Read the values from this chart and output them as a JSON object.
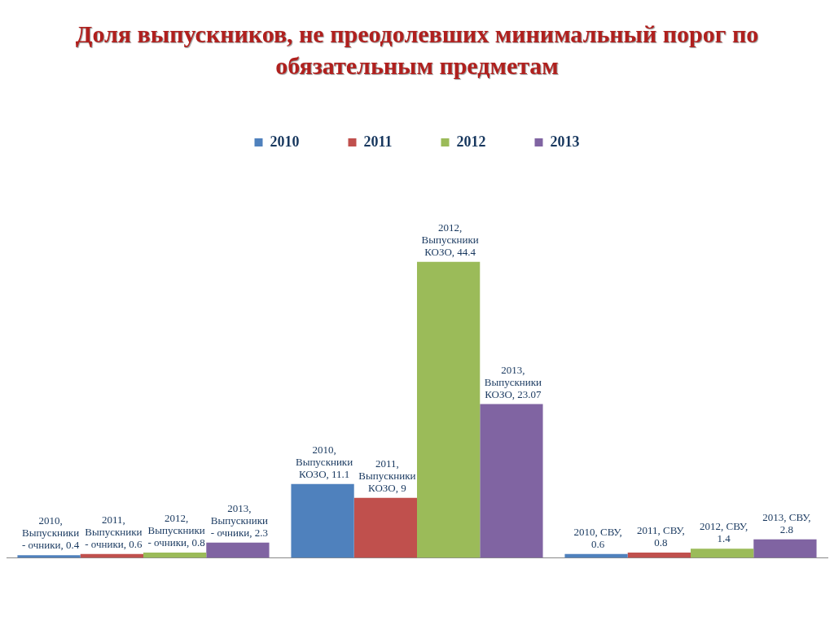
{
  "chart_data": {
    "type": "bar",
    "title": "Доля выпускников, не преодолевших минимальный порог по обязательным предметам",
    "categories": [
      null,
      null,
      null
    ],
    "grid": false,
    "legend": "top",
    "series": [
      {
        "name": "2010",
        "color": "#4f81bd",
        "values": [
          0.4,
          11.1,
          0.6
        ],
        "value_labels": [
          "2010, Выпускники - очники, 0.4",
          "2010, Выпускники КОЗО, 11.1",
          "2010, СВУ, 0.6"
        ]
      },
      {
        "name": "2011",
        "color": "#c0504d",
        "values": [
          0.6,
          9,
          0.8
        ],
        "value_labels": [
          "2011, Выпускники - очники, 0.6",
          "2011, Выпускники КОЗО, 9",
          "2011, СВУ, 0.8"
        ]
      },
      {
        "name": "2012",
        "color": "#9bbb59",
        "values": [
          0.8,
          44.4,
          1.4
        ],
        "value_labels": [
          "2012, Выпускники - очники, 0.8",
          "2012, Выпускники КОЗО, 44.4",
          "2012, СВУ, 1.4"
        ]
      },
      {
        "name": "2013",
        "color": "#8064a2",
        "values": [
          2.3,
          23.07,
          2.8
        ],
        "value_labels": [
          "2013, Выпускники - очники, 2.3",
          "2013, Выпускники КОЗО, 23.07",
          "2013, СВУ, 2.8"
        ]
      }
    ]
  }
}
